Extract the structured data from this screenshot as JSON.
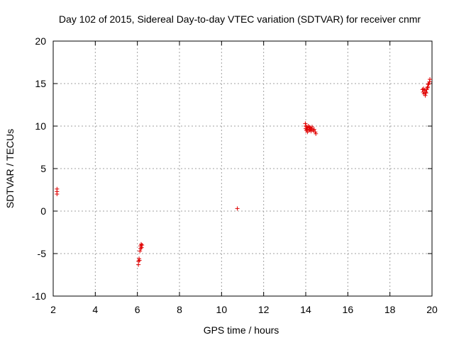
{
  "chart_data": {
    "type": "scatter",
    "title": "Day 102 of 2015, Sidereal Day-to-day VTEC variation (SDTVAR) for receiver cnmr",
    "xlabel": "GPS time / hours",
    "ylabel": "SDTVAR / TECUs",
    "xlim": [
      2,
      20
    ],
    "ylim": [
      -10,
      20
    ],
    "xticks": [
      2,
      4,
      6,
      8,
      10,
      12,
      14,
      16,
      18,
      20
    ],
    "yticks": [
      -10,
      -5,
      0,
      5,
      10,
      15,
      20
    ],
    "grid": true,
    "marker": "+",
    "colors": {
      "points": "#e00000",
      "axes": "#000000",
      "grid": "#a0a0a0"
    },
    "series": [
      {
        "name": "SDTVAR",
        "points": [
          [
            2.18,
            2.6
          ],
          [
            2.18,
            2.3
          ],
          [
            2.18,
            2.0
          ],
          [
            6.05,
            -6.3
          ],
          [
            6.05,
            -5.9
          ],
          [
            6.08,
            -5.6
          ],
          [
            6.1,
            -5.8
          ],
          [
            6.12,
            -4.7
          ],
          [
            6.15,
            -4.4
          ],
          [
            6.15,
            -4.1
          ],
          [
            6.18,
            -3.9
          ],
          [
            6.2,
            -4.3
          ],
          [
            6.22,
            -4.0
          ],
          [
            10.75,
            0.3
          ],
          [
            13.98,
            10.3
          ],
          [
            14.0,
            10.0
          ],
          [
            14.0,
            9.7
          ],
          [
            14.03,
            9.5
          ],
          [
            14.05,
            9.9
          ],
          [
            14.07,
            9.6
          ],
          [
            14.08,
            9.3
          ],
          [
            14.1,
            9.8
          ],
          [
            14.12,
            10.0
          ],
          [
            14.15,
            9.5
          ],
          [
            14.18,
            9.9
          ],
          [
            14.2,
            9.6
          ],
          [
            14.22,
            9.8
          ],
          [
            14.25,
            9.4
          ],
          [
            14.28,
            9.7
          ],
          [
            14.3,
            9.9
          ],
          [
            14.35,
            9.5
          ],
          [
            14.4,
            9.6
          ],
          [
            14.45,
            9.3
          ],
          [
            14.48,
            9.1
          ],
          [
            19.55,
            14.3
          ],
          [
            19.58,
            14.0
          ],
          [
            19.6,
            14.4
          ],
          [
            19.62,
            13.8
          ],
          [
            19.65,
            14.2
          ],
          [
            19.68,
            13.6
          ],
          [
            19.7,
            14.0
          ],
          [
            19.72,
            13.9
          ],
          [
            19.75,
            14.3
          ],
          [
            19.78,
            14.5
          ],
          [
            19.8,
            14.6
          ],
          [
            19.82,
            14.9
          ],
          [
            19.85,
            15.0
          ],
          [
            19.88,
            15.2
          ],
          [
            19.9,
            15.5
          ]
        ]
      }
    ]
  }
}
